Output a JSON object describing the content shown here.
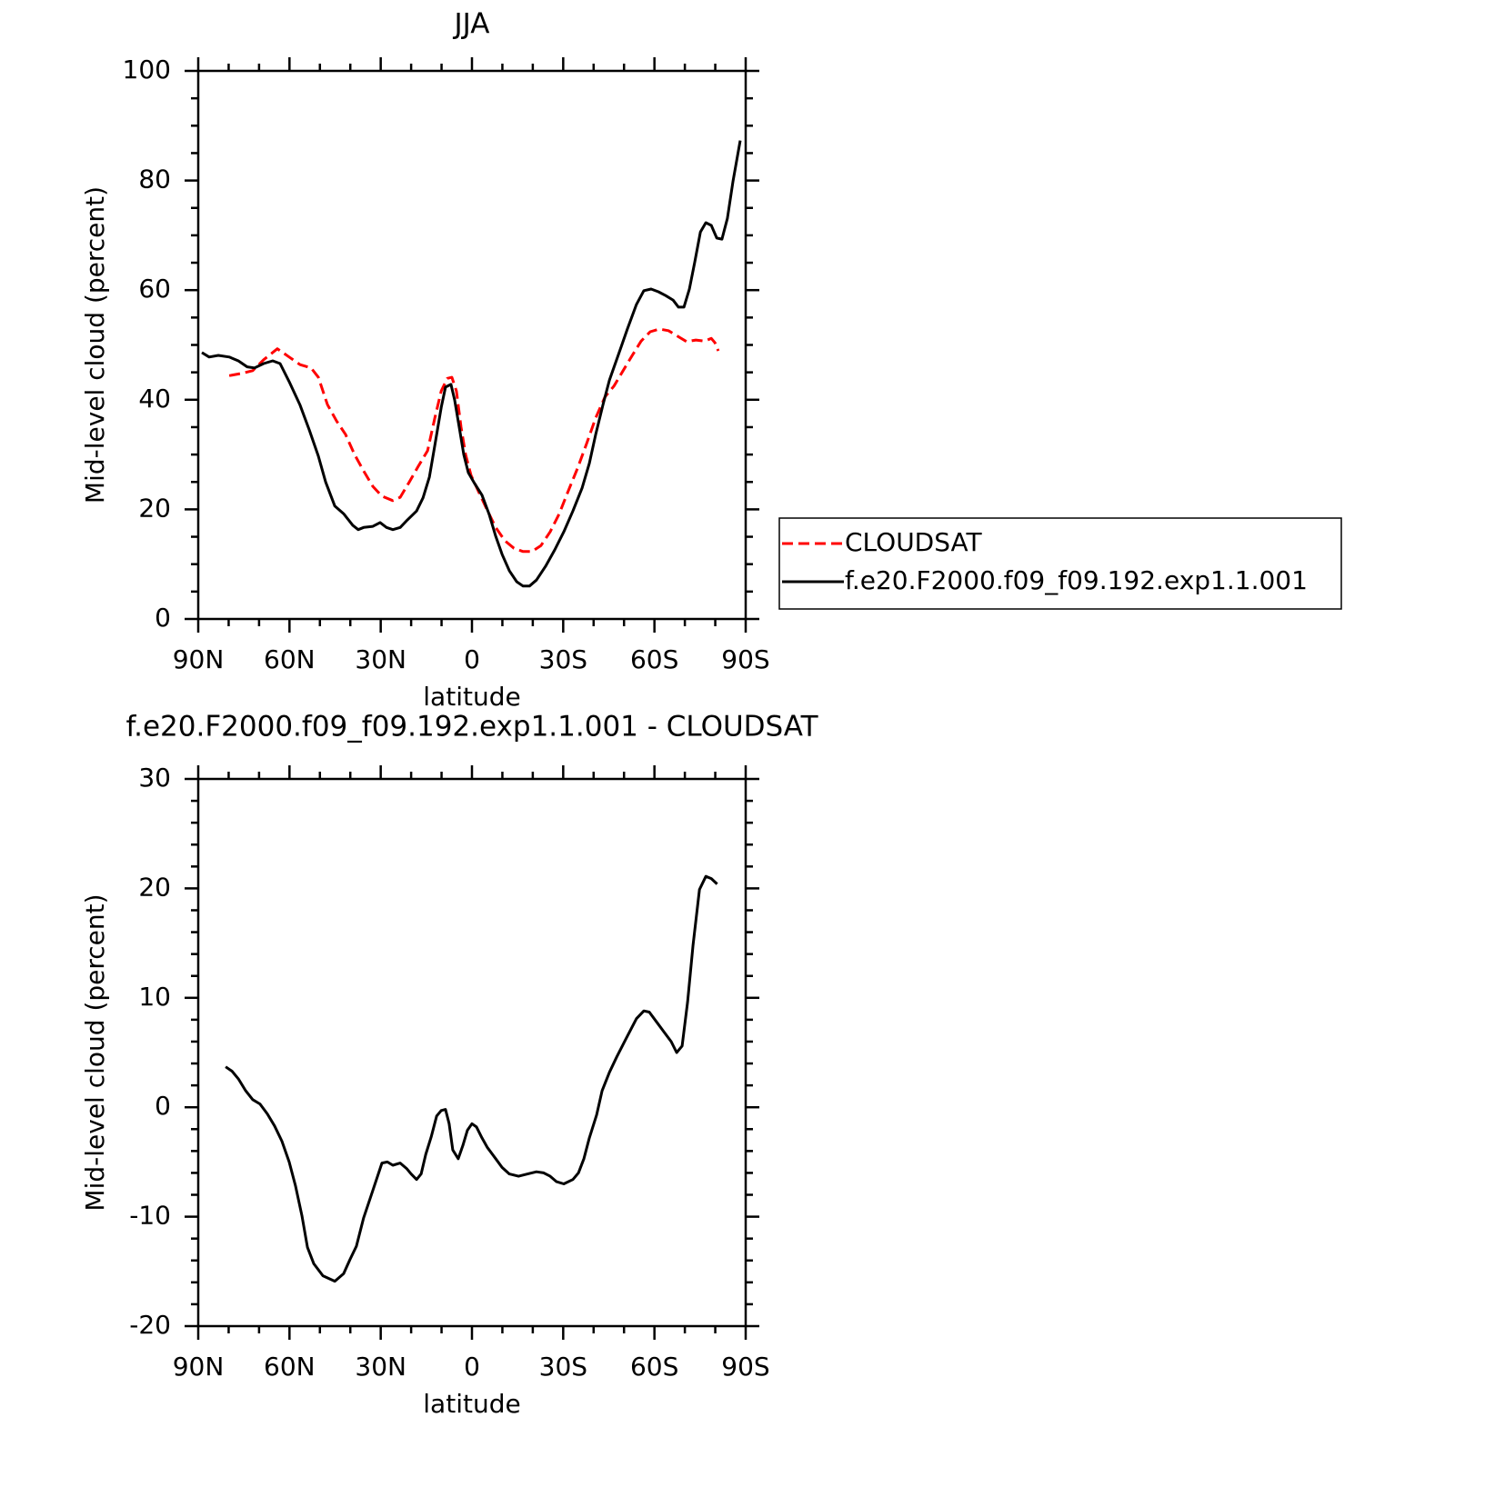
{
  "chart_data": [
    {
      "type": "line",
      "title": "JJA",
      "xlabel": "latitude",
      "ylabel": "Mid-level cloud (percent)",
      "xlim": [
        90,
        -90
      ],
      "ylim": [
        0,
        100
      ],
      "xticks": [
        {
          "value": 90,
          "label": "90N"
        },
        {
          "value": 60,
          "label": "60N"
        },
        {
          "value": 30,
          "label": "30N"
        },
        0,
        {
          "value": -30,
          "label": "30S"
        },
        {
          "value": -60,
          "label": "60S"
        },
        {
          "value": -90,
          "label": "90S"
        }
      ],
      "yticks": [
        0,
        20,
        40,
        60,
        80,
        100
      ],
      "legend": "right",
      "series": [
        {
          "name": "CLOUDSAT",
          "color": "#ff0000",
          "line_style": "dashed",
          "x": [
            79.8,
            75.9,
            72.1,
            68.5,
            64.0,
            60.1,
            56.5,
            52.9,
            50.5,
            47.5,
            44.5,
            41.6,
            38.6,
            35.6,
            32.6,
            29.6,
            26.0,
            23.6,
            20.6,
            17.6,
            14.6,
            12.2,
            10.1,
            8.1,
            6.6,
            5.1,
            3.6,
            2.1,
            0.3,
            -1.8,
            -4.8,
            -7.8,
            -10.8,
            -13.8,
            -16.8,
            -19.7,
            -22.7,
            -25.7,
            -28.7,
            -31.7,
            -34.7,
            -37.7,
            -40.7,
            -43.7,
            -46.7,
            -49.7,
            -52.6,
            -55.6,
            -58.6,
            -61.6,
            -64.6,
            -67.6,
            -70.6,
            -73.6,
            -76.5,
            -78.7,
            -79.9,
            -81.0
          ],
          "values": [
            44.4,
            44.8,
            45.3,
            47.3,
            49.3,
            47.8,
            46.4,
            45.8,
            44.1,
            39.1,
            36.1,
            33.7,
            30.0,
            27.0,
            24.2,
            22.4,
            21.6,
            22.2,
            25.0,
            27.9,
            30.7,
            36.7,
            41.6,
            43.9,
            44.1,
            41.6,
            35.0,
            30.0,
            26.2,
            23.7,
            20.1,
            16.7,
            14.3,
            12.9,
            12.3,
            12.3,
            13.4,
            15.9,
            19.2,
            23.4,
            27.5,
            32.0,
            36.7,
            40.5,
            42.5,
            45.3,
            48.0,
            50.7,
            52.4,
            52.9,
            52.6,
            51.6,
            50.6,
            50.9,
            50.7,
            51.2,
            50.4,
            48.9
          ]
        },
        {
          "name": "f.e20.F2000.f09_f09.192.exp1.1.001",
          "color": "#000000",
          "line_style": "solid",
          "x": [
            88.8,
            86.4,
            83.4,
            79.8,
            76.8,
            73.9,
            71.5,
            68.5,
            65.5,
            63.1,
            60.1,
            56.5,
            53.5,
            50.5,
            48.1,
            45.1,
            42.2,
            39.2,
            37.4,
            35.6,
            32.6,
            30.2,
            28.1,
            26.0,
            23.6,
            21.2,
            18.2,
            16.1,
            14.0,
            12.2,
            10.1,
            8.7,
            6.9,
            5.7,
            4.2,
            2.7,
            1.2,
            -0.9,
            -3.3,
            -5.7,
            -7.8,
            -9.9,
            -12.3,
            -14.7,
            -16.8,
            -18.9,
            -21.2,
            -24.2,
            -27.2,
            -30.2,
            -33.2,
            -36.2,
            -38.6,
            -40.7,
            -43.1,
            -45.2,
            -48.2,
            -51.1,
            -54.1,
            -56.5,
            -58.9,
            -61.3,
            -63.7,
            -66.1,
            -67.9,
            -69.7,
            -71.5,
            -73.3,
            -75.1,
            -76.9,
            -78.7,
            -80.5,
            -82.2,
            -84.0,
            -85.8,
            -88.2
          ],
          "values": [
            48.6,
            47.8,
            48.1,
            47.8,
            47.1,
            46.0,
            45.8,
            46.6,
            47.1,
            46.6,
            43.3,
            39.0,
            34.5,
            29.7,
            25.0,
            20.6,
            19.2,
            17.1,
            16.3,
            16.7,
            16.9,
            17.6,
            16.7,
            16.3,
            16.7,
            18.1,
            19.7,
            22.1,
            25.9,
            31.7,
            38.6,
            42.3,
            42.8,
            40.0,
            35.0,
            30.0,
            26.7,
            24.7,
            22.6,
            19.0,
            15.1,
            11.8,
            8.8,
            6.8,
            6.0,
            6.0,
            7.1,
            9.6,
            12.6,
            15.9,
            19.7,
            23.9,
            28.4,
            33.7,
            39.1,
            43.6,
            48.3,
            52.9,
            57.4,
            59.9,
            60.2,
            59.7,
            59.0,
            58.2,
            56.9,
            56.9,
            60.2,
            65.2,
            70.6,
            72.3,
            71.8,
            69.5,
            69.3,
            73.1,
            79.8,
            87.3
          ]
        }
      ]
    },
    {
      "type": "line",
      "title": "f.e20.F2000.f09_f09.192.exp1.1.001 - CLOUDSAT",
      "xlabel": "latitude",
      "ylabel": "Mid-level cloud (percent)",
      "xlim": [
        90,
        -90
      ],
      "ylim": [
        -20,
        30
      ],
      "xticks": [
        {
          "value": 90,
          "label": "90N"
        },
        {
          "value": 60,
          "label": "60N"
        },
        {
          "value": 30,
          "label": "30N"
        },
        0,
        {
          "value": -30,
          "label": "30S"
        },
        {
          "value": -60,
          "label": "60S"
        },
        {
          "value": -90,
          "label": "90S"
        }
      ],
      "yticks": [
        -20,
        -10,
        0,
        10,
        20,
        30
      ],
      "color": "#000000",
      "x": [
        81.0,
        78.9,
        76.8,
        74.4,
        72.1,
        69.7,
        67.3,
        64.9,
        62.5,
        60.1,
        58.0,
        55.9,
        54.1,
        52.0,
        49.0,
        45.1,
        42.2,
        40.1,
        38.0,
        35.6,
        32.6,
        29.6,
        27.8,
        26.0,
        23.6,
        21.5,
        20.0,
        18.2,
        16.7,
        15.2,
        13.4,
        11.6,
        10.1,
        8.7,
        7.5,
        6.3,
        4.5,
        3.0,
        1.5,
        0.0,
        -1.5,
        -3.3,
        -5.1,
        -7.8,
        -9.9,
        -12.3,
        -15.3,
        -18.3,
        -21.2,
        -23.6,
        -25.7,
        -27.8,
        -30.2,
        -33.2,
        -35.0,
        -36.8,
        -38.6,
        -41.0,
        -42.8,
        -45.2,
        -47.6,
        -51.1,
        -54.1,
        -56.5,
        -58.3,
        -60.7,
        -63.1,
        -65.5,
        -67.3,
        -69.1,
        -70.9,
        -72.7,
        -74.8,
        -76.9,
        -78.7,
        -80.6
      ],
      "values": [
        3.7,
        3.3,
        2.6,
        1.5,
        0.7,
        0.3,
        -0.6,
        -1.7,
        -3.1,
        -5.0,
        -7.2,
        -9.9,
        -12.8,
        -14.3,
        -15.4,
        -15.9,
        -15.2,
        -13.9,
        -12.7,
        -10.1,
        -7.6,
        -5.1,
        -5.0,
        -5.3,
        -5.1,
        -5.6,
        -6.1,
        -6.6,
        -6.1,
        -4.3,
        -2.7,
        -0.8,
        -0.3,
        -0.2,
        -1.5,
        -3.9,
        -4.7,
        -3.5,
        -2.1,
        -1.5,
        -1.8,
        -2.8,
        -3.7,
        -4.7,
        -5.5,
        -6.1,
        -6.3,
        -6.1,
        -5.9,
        -6.0,
        -6.3,
        -6.8,
        -7.0,
        -6.6,
        -6.0,
        -4.7,
        -2.8,
        -0.7,
        1.5,
        3.2,
        4.6,
        6.5,
        8.1,
        8.8,
        8.7,
        7.8,
        6.9,
        6.0,
        5.0,
        5.6,
        9.6,
        14.8,
        19.9,
        21.1,
        20.9,
        20.4
      ]
    }
  ]
}
